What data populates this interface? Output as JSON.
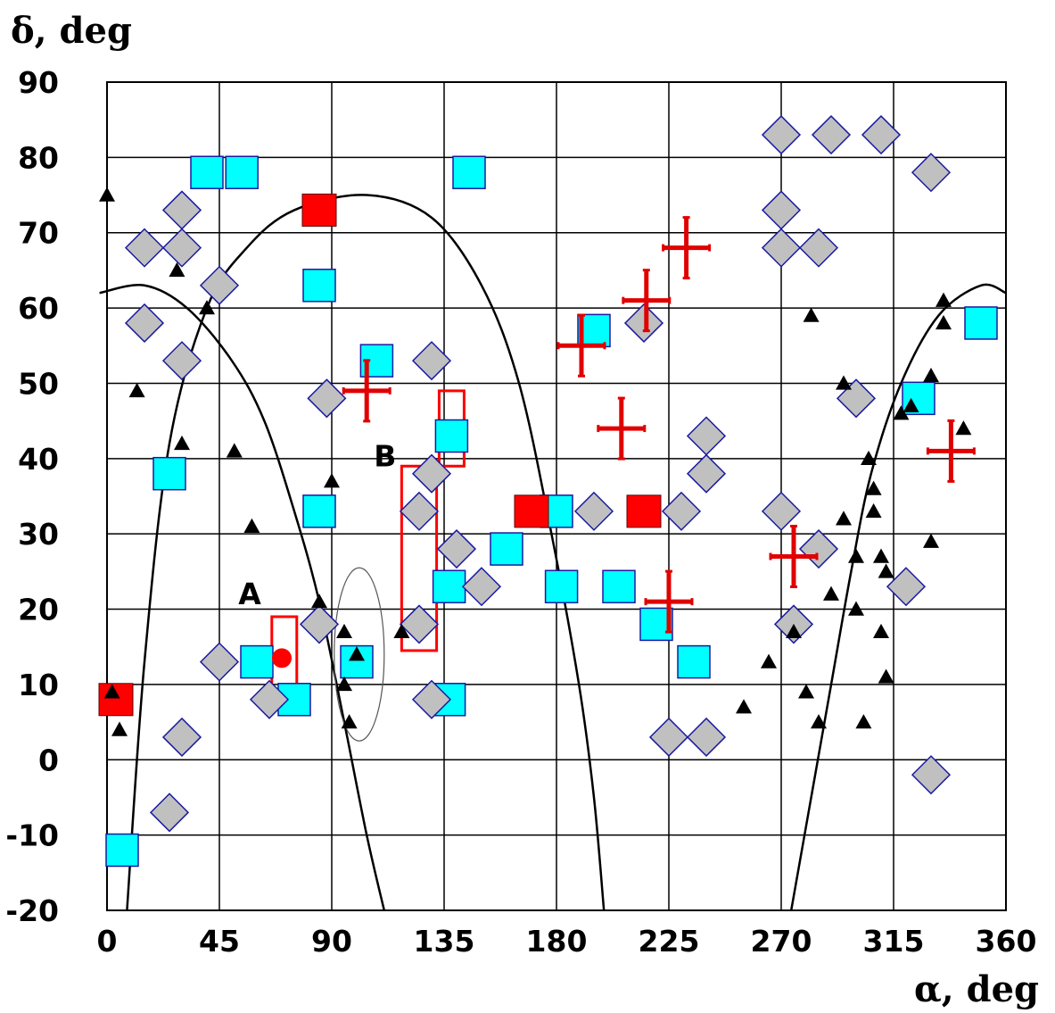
{
  "chart_data": {
    "type": "scatter",
    "title": "",
    "xlabel": "α, deg",
    "ylabel": "δ, deg",
    "xlim": [
      0,
      360
    ],
    "ylim": [
      -20,
      90
    ],
    "xticks": [
      0,
      45,
      90,
      135,
      180,
      225,
      270,
      315,
      360
    ],
    "yticks": [
      -20,
      -10,
      0,
      10,
      20,
      30,
      40,
      50,
      60,
      70,
      80,
      90
    ],
    "grid": true,
    "legend": "none",
    "colors": {
      "cyan_square": "#00ffff",
      "red_square": "#ff0000",
      "gray_diamond": "#c0c0c0",
      "black_triangle": "#000000",
      "red_cross": "#e00000",
      "outline": "#1a1aa0"
    },
    "series": [
      {
        "marker": "cyan-square",
        "points": [
          [
            40,
            78
          ],
          [
            54,
            78
          ],
          [
            145,
            78
          ],
          [
            85,
            63
          ],
          [
            108,
            53
          ],
          [
            195,
            57
          ],
          [
            350,
            58
          ],
          [
            25,
            38
          ],
          [
            85,
            33
          ],
          [
            138,
            43
          ],
          [
            160,
            28
          ],
          [
            180,
            33
          ],
          [
            325,
            48
          ],
          [
            137,
            23
          ],
          [
            182,
            23
          ],
          [
            205,
            23
          ],
          [
            220,
            18
          ],
          [
            235,
            13
          ],
          [
            60,
            13
          ],
          [
            75,
            8
          ],
          [
            100,
            13
          ],
          [
            137,
            8
          ],
          [
            5,
            -12
          ]
        ]
      },
      {
        "marker": "red-square",
        "points": [
          [
            85,
            73
          ],
          [
            170,
            33
          ],
          [
            215,
            33
          ],
          [
            -3,
            8
          ]
        ]
      },
      {
        "marker": "gray-diamond",
        "points": [
          [
            270,
            83
          ],
          [
            290,
            83
          ],
          [
            310,
            83
          ],
          [
            330,
            78
          ],
          [
            270,
            73
          ],
          [
            270,
            68
          ],
          [
            285,
            68
          ],
          [
            15,
            68
          ],
          [
            30,
            73
          ],
          [
            30,
            68
          ],
          [
            45,
            63
          ],
          [
            15,
            58
          ],
          [
            215,
            58
          ],
          [
            30,
            53
          ],
          [
            88,
            48
          ],
          [
            130,
            53
          ],
          [
            300,
            48
          ],
          [
            130,
            38
          ],
          [
            125,
            33
          ],
          [
            195,
            33
          ],
          [
            230,
            33
          ],
          [
            240,
            43
          ],
          [
            240,
            38
          ],
          [
            270,
            33
          ],
          [
            140,
            28
          ],
          [
            150,
            23
          ],
          [
            285,
            28
          ],
          [
            320,
            23
          ],
          [
            85,
            18
          ],
          [
            125,
            18
          ],
          [
            275,
            18
          ],
          [
            45,
            13
          ],
          [
            65,
            8
          ],
          [
            130,
            8
          ],
          [
            30,
            3
          ],
          [
            225,
            3
          ],
          [
            240,
            3
          ],
          [
            330,
            -2
          ],
          [
            25,
            -7
          ]
        ]
      },
      {
        "marker": "black-triangle",
        "points": [
          [
            0,
            75
          ],
          [
            28,
            65
          ],
          [
            40,
            60
          ],
          [
            12,
            49
          ],
          [
            30,
            42
          ],
          [
            51,
            41
          ],
          [
            58,
            31
          ],
          [
            85,
            21
          ],
          [
            90,
            37
          ],
          [
            95,
            17
          ],
          [
            100,
            14
          ],
          [
            95,
            10
          ],
          [
            97,
            5
          ],
          [
            118,
            17
          ],
          [
            2,
            9
          ],
          [
            5,
            4
          ],
          [
            255,
            7
          ],
          [
            265,
            13
          ],
          [
            275,
            17
          ],
          [
            282,
            59
          ],
          [
            280,
            9
          ],
          [
            285,
            5
          ],
          [
            290,
            22
          ],
          [
            295,
            32
          ],
          [
            300,
            27
          ],
          [
            300,
            20
          ],
          [
            295,
            50
          ],
          [
            305,
            40
          ],
          [
            307,
            36
          ],
          [
            307,
            33
          ],
          [
            310,
            27
          ],
          [
            312,
            25
          ],
          [
            310,
            17
          ],
          [
            312,
            11
          ],
          [
            318,
            46
          ],
          [
            322,
            47
          ],
          [
            330,
            51
          ],
          [
            330,
            29
          ],
          [
            335,
            61
          ],
          [
            335,
            58
          ],
          [
            343,
            44
          ],
          [
            303,
            5
          ]
        ]
      },
      {
        "marker": "red-cross",
        "points": [
          [
            104,
            49
          ],
          [
            190,
            55
          ],
          [
            206,
            44
          ],
          [
            216,
            61
          ],
          [
            232,
            68
          ],
          [
            225,
            21
          ],
          [
            275,
            27
          ],
          [
            338,
            41
          ]
        ]
      },
      {
        "marker": "red-circle",
        "points": [
          [
            70,
            13.5
          ]
        ]
      }
    ],
    "curves": [
      {
        "shape": "arch",
        "points": [
          [
            8,
            -20
          ],
          [
            15,
            13
          ],
          [
            25,
            42
          ],
          [
            40,
            60
          ],
          [
            56,
            68
          ],
          [
            75,
            73
          ],
          [
            104,
            75
          ],
          [
            130,
            72
          ],
          [
            150,
            63
          ],
          [
            165,
            50
          ],
          [
            178,
            30
          ],
          [
            189,
            10
          ],
          [
            195,
            -5
          ],
          [
            199,
            -20
          ]
        ]
      },
      {
        "shape": "arch",
        "points": [
          [
            -3,
            62
          ],
          [
            15,
            63
          ],
          [
            32,
            60
          ],
          [
            50,
            53
          ],
          [
            63,
            45
          ],
          [
            75,
            33
          ],
          [
            85,
            21
          ],
          [
            95,
            5
          ],
          [
            104,
            -10
          ],
          [
            111,
            -20
          ]
        ]
      },
      {
        "shape": "rising",
        "points": [
          [
            274,
            -20
          ],
          [
            282,
            -5
          ],
          [
            290,
            10
          ],
          [
            298,
            25
          ],
          [
            306,
            38
          ],
          [
            318,
            50
          ],
          [
            333,
            59
          ],
          [
            350,
            63
          ],
          [
            360,
            62
          ]
        ]
      }
    ],
    "regions": [
      {
        "label": "A",
        "shape": "rect",
        "x": [
          66,
          76
        ],
        "y": [
          9,
          19
        ]
      },
      {
        "label": "B",
        "shape": "rect",
        "x": [
          118,
          132
        ],
        "y": [
          14.5,
          39
        ]
      },
      {
        "label": "",
        "shape": "rect",
        "x": [
          133,
          143
        ],
        "y": [
          39,
          49
        ]
      },
      {
        "label": "",
        "shape": "ellipse",
        "cx": 101,
        "cy": 14,
        "rx": 10,
        "ry": 11.5
      }
    ]
  }
}
